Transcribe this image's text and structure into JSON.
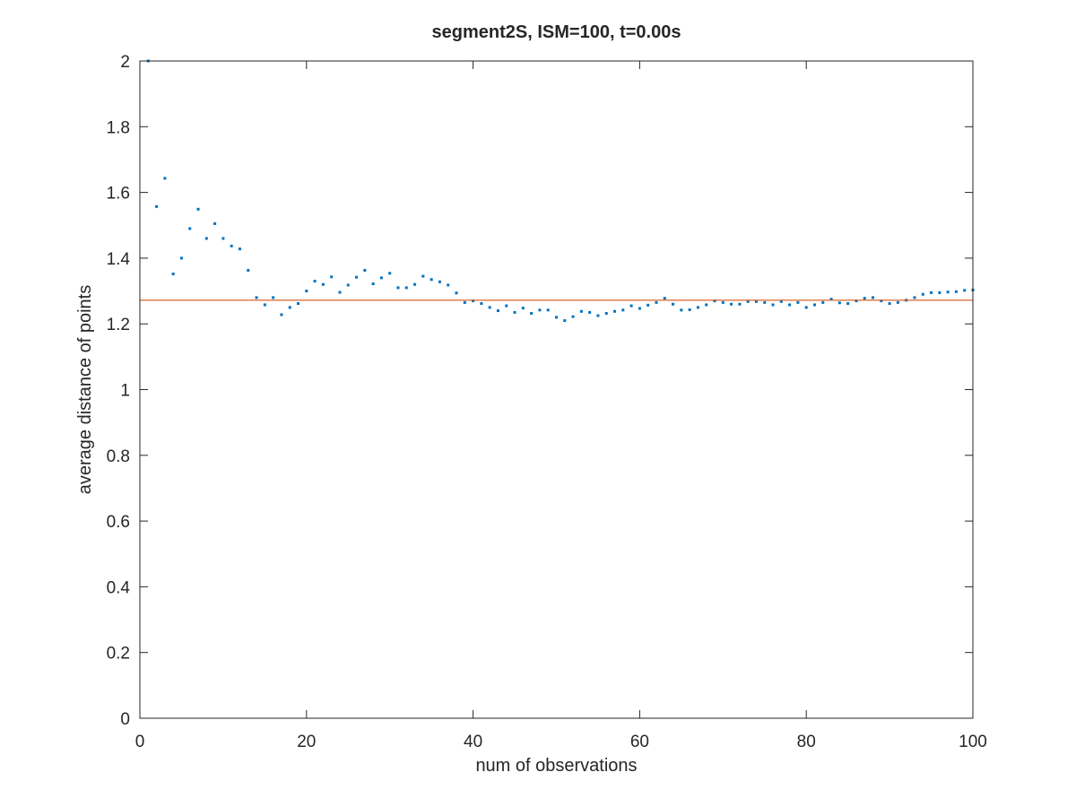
{
  "chart_data": {
    "type": "scatter",
    "title": "segment2S, ISM=100, t=0.00s",
    "xlabel": "num of observations",
    "ylabel": "average distance of points",
    "xlim": [
      0,
      100
    ],
    "ylim": [
      0,
      2
    ],
    "xticks": [
      "0",
      "20",
      "40",
      "60",
      "80",
      "100"
    ],
    "yticks": [
      "0",
      "0.2",
      "0.4",
      "0.6",
      "0.8",
      "1",
      "1.2",
      "1.4",
      "1.6",
      "1.8",
      "2"
    ],
    "grid": false,
    "series": [
      {
        "marker": "dot",
        "color": "#0072bd",
        "x": [
          1,
          2,
          3,
          4,
          5,
          6,
          7,
          8,
          9,
          10,
          11,
          12,
          13,
          14,
          15,
          16,
          17,
          18,
          19,
          20,
          21,
          22,
          23,
          24,
          25,
          26,
          27,
          28,
          29,
          30,
          31,
          32,
          33,
          34,
          35,
          36,
          37,
          38,
          39,
          40,
          41,
          42,
          43,
          44,
          45,
          46,
          47,
          48,
          49,
          50,
          51,
          52,
          53,
          54,
          55,
          56,
          57,
          58,
          59,
          60,
          61,
          62,
          63,
          64,
          65,
          66,
          67,
          68,
          69,
          70,
          71,
          72,
          73,
          74,
          75,
          76,
          77,
          78,
          79,
          80,
          81,
          82,
          83,
          84,
          85,
          86,
          87,
          88,
          89,
          90,
          91,
          92,
          93,
          94,
          95,
          96,
          97,
          98,
          99,
          100
        ],
        "y": [
          2.0,
          1.557,
          1.643,
          1.352,
          1.4,
          1.49,
          1.549,
          1.46,
          1.505,
          1.46,
          1.437,
          1.428,
          1.363,
          1.28,
          1.258,
          1.28,
          1.228,
          1.25,
          1.262,
          1.3,
          1.33,
          1.32,
          1.343,
          1.296,
          1.318,
          1.342,
          1.363,
          1.322,
          1.34,
          1.354,
          1.31,
          1.31,
          1.32,
          1.345,
          1.335,
          1.328,
          1.318,
          1.294,
          1.265,
          1.27,
          1.262,
          1.25,
          1.24,
          1.255,
          1.235,
          1.248,
          1.232,
          1.242,
          1.242,
          1.22,
          1.21,
          1.222,
          1.238,
          1.235,
          1.225,
          1.232,
          1.238,
          1.242,
          1.255,
          1.247,
          1.257,
          1.265,
          1.278,
          1.26,
          1.242,
          1.243,
          1.25,
          1.258,
          1.27,
          1.265,
          1.26,
          1.26,
          1.268,
          1.268,
          1.265,
          1.258,
          1.268,
          1.258,
          1.265,
          1.25,
          1.258,
          1.265,
          1.275,
          1.264,
          1.262,
          1.27,
          1.278,
          1.28,
          1.27,
          1.262,
          1.265,
          1.272,
          1.28,
          1.29,
          1.295,
          1.295,
          1.297,
          1.298,
          1.302,
          1.303
        ]
      },
      {
        "marker": "line",
        "color": "#d95319",
        "x": [
          0,
          100
        ],
        "y": [
          1.272,
          1.272
        ]
      }
    ]
  }
}
